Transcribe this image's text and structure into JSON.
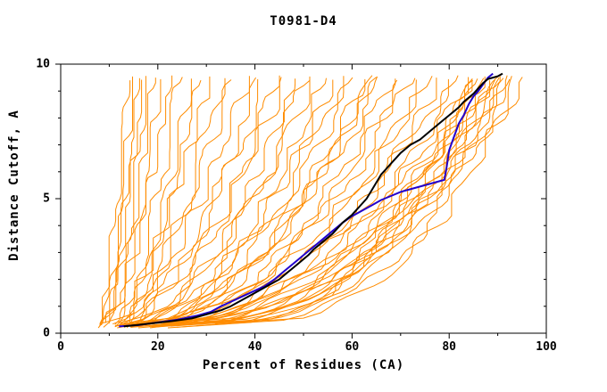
{
  "chart_data": {
    "type": "line",
    "title": "T0981-D4",
    "xlabel": "Percent of Residues (CA)",
    "ylabel": "Distance Cutoff, A",
    "xlim": [
      0,
      100
    ],
    "ylim": [
      0,
      10
    ],
    "xticks": [
      0,
      20,
      40,
      60,
      80,
      100
    ],
    "yticks": [
      0,
      5,
      10
    ],
    "xtick_labels": [
      "0",
      "20",
      "40",
      "60",
      "80",
      "100"
    ],
    "ytick_labels": [
      "0",
      "5",
      "10"
    ],
    "x_minor_step": 10,
    "y_minor_step": 1,
    "grid": false,
    "legend": "none",
    "colors": {
      "axis": "#000000",
      "ensemble": "#ff8c00",
      "black_line": "#000000",
      "blue_line": "#2200cc"
    },
    "series": [
      {
        "name": "blue-line",
        "color": "#2200cc",
        "width": 2,
        "points": [
          [
            12,
            0.25
          ],
          [
            16,
            0.3
          ],
          [
            20,
            0.4
          ],
          [
            24,
            0.5
          ],
          [
            28,
            0.65
          ],
          [
            31,
            0.8
          ],
          [
            33,
            1.0
          ],
          [
            36,
            1.25
          ],
          [
            39,
            1.5
          ],
          [
            42,
            1.75
          ],
          [
            44,
            2.0
          ],
          [
            46,
            2.3
          ],
          [
            48,
            2.6
          ],
          [
            50,
            2.9
          ],
          [
            52,
            3.2
          ],
          [
            54,
            3.5
          ],
          [
            56,
            3.8
          ],
          [
            58,
            4.1
          ],
          [
            60,
            4.35
          ],
          [
            62,
            4.55
          ],
          [
            64,
            4.75
          ],
          [
            66,
            4.95
          ],
          [
            68,
            5.1
          ],
          [
            70,
            5.25
          ],
          [
            73,
            5.4
          ],
          [
            76,
            5.55
          ],
          [
            79,
            5.7
          ],
          [
            79.5,
            6.2
          ],
          [
            80,
            6.8
          ],
          [
            81,
            7.3
          ],
          [
            82,
            7.8
          ],
          [
            83,
            8.1
          ],
          [
            84,
            8.5
          ],
          [
            85,
            8.8
          ],
          [
            86,
            9.0
          ],
          [
            87,
            9.25
          ],
          [
            88,
            9.5
          ],
          [
            89,
            9.65
          ]
        ]
      },
      {
        "name": "black-line",
        "color": "#000000",
        "width": 2,
        "points": [
          [
            13,
            0.25
          ],
          [
            18,
            0.35
          ],
          [
            23,
            0.45
          ],
          [
            27,
            0.55
          ],
          [
            30,
            0.7
          ],
          [
            33,
            0.85
          ],
          [
            35,
            1.0
          ],
          [
            37,
            1.2
          ],
          [
            39,
            1.4
          ],
          [
            41,
            1.6
          ],
          [
            43,
            1.8
          ],
          [
            45,
            2.0
          ],
          [
            47,
            2.3
          ],
          [
            49,
            2.6
          ],
          [
            51,
            2.9
          ],
          [
            52,
            3.1
          ],
          [
            54,
            3.4
          ],
          [
            56,
            3.7
          ],
          [
            57,
            3.9
          ],
          [
            58,
            4.1
          ],
          [
            60,
            4.4
          ],
          [
            61,
            4.6
          ],
          [
            62,
            4.8
          ],
          [
            63,
            5.0
          ],
          [
            64,
            5.3
          ],
          [
            65,
            5.6
          ],
          [
            66,
            5.9
          ],
          [
            67,
            6.1
          ],
          [
            68,
            6.3
          ],
          [
            69,
            6.5
          ],
          [
            70,
            6.7
          ],
          [
            72,
            7.0
          ],
          [
            74,
            7.2
          ],
          [
            76,
            7.5
          ],
          [
            78,
            7.8
          ],
          [
            80,
            8.1
          ],
          [
            82,
            8.4
          ],
          [
            83,
            8.6
          ],
          [
            85,
            8.9
          ],
          [
            86,
            9.1
          ],
          [
            87,
            9.3
          ],
          [
            88,
            9.45
          ],
          [
            90,
            9.55
          ],
          [
            91,
            9.65
          ]
        ]
      }
    ],
    "ensemble_curves": {
      "note": "orange background curves approximated as [x_at_bottom, x_at_top, shape_exponent, jitter_amplitude]",
      "params": [
        [
          7,
          13,
          0.6,
          1.0
        ],
        [
          8,
          14,
          0.7,
          1.2
        ],
        [
          9,
          15,
          0.6,
          1.0
        ],
        [
          8,
          16,
          0.8,
          1.3
        ],
        [
          10,
          17,
          0.7,
          1.1
        ],
        [
          9,
          18,
          0.6,
          1.2
        ],
        [
          11,
          20,
          0.7,
          1.0
        ],
        [
          10,
          22,
          0.8,
          1.4
        ],
        [
          12,
          24,
          0.7,
          1.2
        ],
        [
          11,
          26,
          0.6,
          1.3
        ],
        [
          13,
          28,
          0.7,
          1.1
        ],
        [
          12,
          30,
          0.8,
          1.4
        ],
        [
          14,
          33,
          0.7,
          1.2
        ],
        [
          13,
          35,
          0.75,
          1.3
        ],
        [
          10,
          38,
          0.6,
          1.4
        ],
        [
          12,
          40,
          0.55,
          1.2
        ],
        [
          11,
          42,
          0.6,
          1.5
        ],
        [
          13,
          44,
          0.5,
          1.3
        ],
        [
          12,
          46,
          0.6,
          1.4
        ],
        [
          14,
          48,
          0.55,
          1.2
        ],
        [
          13,
          50,
          0.5,
          1.5
        ],
        [
          15,
          52,
          0.6,
          1.3
        ],
        [
          14,
          54,
          0.5,
          1.4
        ],
        [
          16,
          56,
          0.55,
          1.2
        ],
        [
          15,
          58,
          0.5,
          1.5
        ],
        [
          17,
          60,
          0.55,
          1.3
        ],
        [
          16,
          62,
          0.5,
          1.4
        ],
        [
          18,
          64,
          0.5,
          1.2
        ],
        [
          17,
          66,
          0.55,
          1.5
        ],
        [
          19,
          68,
          0.5,
          1.3
        ],
        [
          18,
          70,
          0.5,
          1.4
        ],
        [
          20,
          65,
          0.6,
          1.2
        ],
        [
          12,
          72,
          0.45,
          1.5
        ],
        [
          14,
          74,
          0.4,
          1.3
        ],
        [
          13,
          76,
          0.45,
          1.4
        ],
        [
          15,
          78,
          0.4,
          1.2
        ],
        [
          14,
          80,
          0.45,
          1.5
        ],
        [
          16,
          82,
          0.4,
          1.3
        ],
        [
          15,
          84,
          0.42,
          1.4
        ],
        [
          17,
          85,
          0.38,
          1.2
        ],
        [
          16,
          86,
          0.45,
          1.5
        ],
        [
          18,
          87,
          0.4,
          1.3
        ],
        [
          17,
          88,
          0.42,
          1.4
        ],
        [
          19,
          89,
          0.38,
          1.2
        ],
        [
          18,
          90,
          0.4,
          1.5
        ],
        [
          20,
          91,
          0.42,
          1.3
        ],
        [
          19,
          92,
          0.38,
          1.4
        ],
        [
          21,
          93,
          0.4,
          1.2
        ],
        [
          20,
          95,
          0.38,
          1.5
        ],
        [
          22,
          86,
          0.35,
          1.3
        ],
        [
          24,
          88,
          0.36,
          1.4
        ],
        [
          26,
          90,
          0.35,
          1.2
        ],
        [
          28,
          92,
          0.34,
          1.5
        ],
        [
          25,
          84,
          0.35,
          1.3
        ],
        [
          30,
          94,
          0.33,
          1.4
        ]
      ]
    }
  }
}
